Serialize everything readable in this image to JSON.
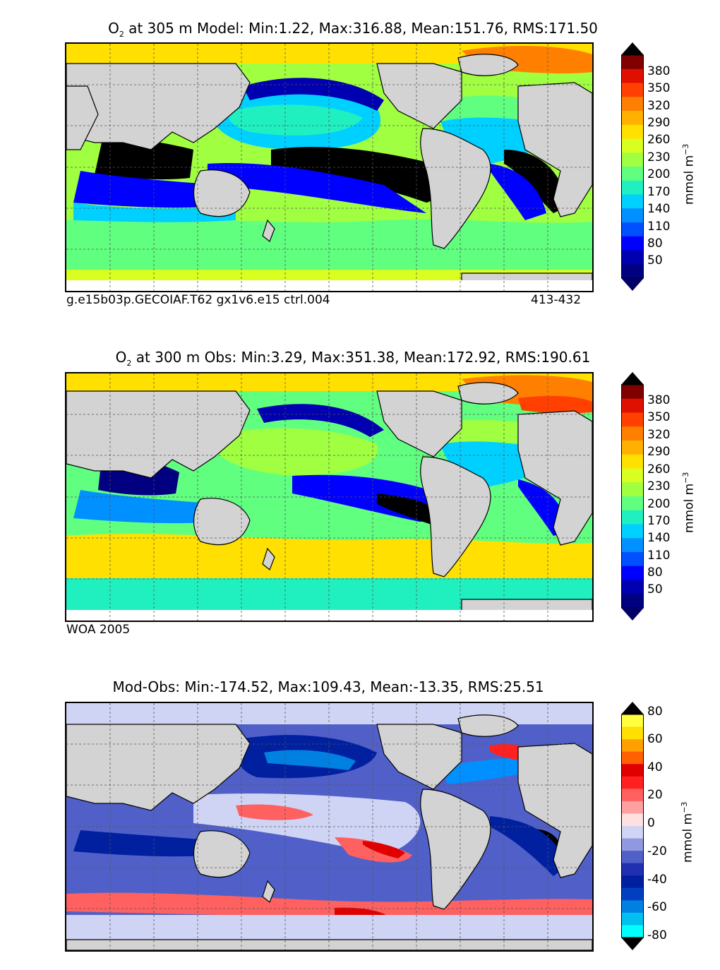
{
  "panels": [
    {
      "id": "model",
      "title_prefix": "O",
      "title_sub": "2",
      "title_rest": " at 305 m Model: Min:1.22, Max:316.88, Mean:151.76, RMS:171.50",
      "caption_left": "g.e15b03p.GECOIAF.T62 gx1v6.e15 ctrl.004",
      "caption_right": "413-432",
      "colorbar_ticks": [
        "380",
        "350",
        "320",
        "290",
        "260",
        "230",
        "200",
        "170",
        "140",
        "110",
        "80",
        "50"
      ],
      "units": "mmol m",
      "units_sup": "−3"
    },
    {
      "id": "obs",
      "title_prefix": "O",
      "title_sub": "2",
      "title_rest": " at 300 m Obs: Min:3.29, Max:351.38, Mean:172.92, RMS:190.61",
      "caption_left": "WOA 2005",
      "caption_right": "",
      "colorbar_ticks": [
        "380",
        "350",
        "320",
        "290",
        "260",
        "230",
        "200",
        "170",
        "140",
        "110",
        "80",
        "50"
      ],
      "units": "mmol m",
      "units_sup": "−3"
    },
    {
      "id": "diff",
      "title_prefix": "",
      "title_sub": "",
      "title_rest": "Mod-Obs: Min:-174.52, Max:109.43, Mean:-13.35, RMS:25.51",
      "caption_left": "",
      "caption_right": "",
      "colorbar_ticks": [
        "80",
        "60",
        "40",
        "20",
        "0",
        "-20",
        "-40",
        "-60",
        "-80"
      ],
      "units": "mmol m",
      "units_sup": "−3"
    }
  ],
  "colors": {
    "land": "#d3d3d3",
    "ice_white": "#ffffff",
    "o2_scale": [
      "#000080",
      "#0000b0",
      "#0000ff",
      "#0050ff",
      "#0090ff",
      "#00d0ff",
      "#20f0c0",
      "#60ff80",
      "#a0ff40",
      "#d8ff20",
      "#ffe000",
      "#ffb000",
      "#ff8000",
      "#ff4000",
      "#e01000",
      "#800000"
    ],
    "diff_scale": [
      "#00ffff",
      "#00c0f0",
      "#0080e0",
      "#0040c0",
      "#0020a0",
      "#2030b0",
      "#5060c8",
      "#9098e0",
      "#d0d4f4",
      "#ffe0e0",
      "#ffa0a0",
      "#ff6060",
      "#ff2020",
      "#e00000",
      "#ff6000",
      "#ffa000",
      "#ffe000",
      "#ffff40"
    ]
  }
}
